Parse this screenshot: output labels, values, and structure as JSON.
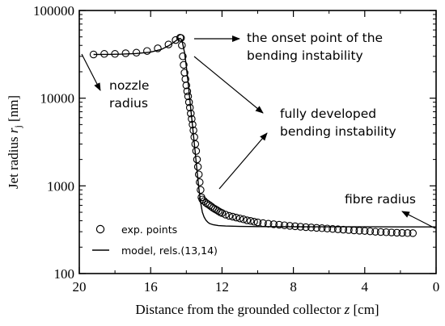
{
  "chart_data": {
    "type": "scatter",
    "xlabel": "Distance from the grounded collector z [cm]",
    "ylabel": "Jet radius r_j [nm]",
    "xlim": [
      20,
      0
    ],
    "ylim": [
      100,
      100000
    ],
    "y_scale": "log",
    "x_reversed": true,
    "grid": false,
    "x_ticks": [
      20,
      16,
      12,
      8,
      4,
      0
    ],
    "y_ticks": [
      100,
      1000,
      10000,
      100000
    ],
    "x_tick_labels": [
      "20",
      "16",
      "12",
      "8",
      "4",
      "0"
    ],
    "y_tick_labels": [
      "100",
      "1000",
      "10000",
      "100000"
    ],
    "legend_position": "bottom-left",
    "series": [
      {
        "name": "exp. points",
        "marker": "open-circle",
        "x": [
          19.2,
          18.6,
          18.0,
          17.4,
          16.8,
          16.2,
          15.6,
          15.0,
          14.6,
          14.35,
          14.3,
          14.25,
          14.2,
          14.15,
          14.1,
          14.05,
          14.0,
          13.95,
          13.9,
          13.85,
          13.8,
          13.75,
          13.7,
          13.65,
          13.6,
          13.55,
          13.5,
          13.45,
          13.4,
          13.35,
          13.3,
          13.25,
          13.2,
          13.15,
          13.1,
          13.0,
          12.9,
          12.8,
          12.7,
          12.6,
          12.5,
          12.4,
          12.3,
          12.2,
          12.1,
          12.0,
          11.8,
          11.6,
          11.4,
          11.2,
          11.0,
          10.8,
          10.6,
          10.4,
          10.2,
          10.0,
          9.7,
          9.4,
          9.1,
          8.8,
          8.5,
          8.2,
          7.9,
          7.6,
          7.3,
          7.0,
          6.7,
          6.4,
          6.1,
          5.8,
          5.5,
          5.2,
          4.9,
          4.6,
          4.3,
          4.0,
          3.7,
          3.4,
          3.1,
          2.8,
          2.5,
          2.2,
          1.9,
          1.6,
          1.3
        ],
        "y": [
          31500,
          32000,
          32000,
          32500,
          33000,
          34500,
          37000,
          41000,
          46000,
          49000,
          48500,
          40000,
          30000,
          24000,
          19500,
          16500,
          14000,
          12000,
          10500,
          9000,
          7800,
          6700,
          5800,
          5000,
          4300,
          3600,
          3000,
          2500,
          2000,
          1650,
          1350,
          1100,
          900,
          740,
          700,
          670,
          640,
          620,
          600,
          580,
          560,
          545,
          530,
          515,
          500,
          490,
          470,
          455,
          445,
          435,
          425,
          415,
          405,
          398,
          390,
          383,
          376,
          370,
          365,
          360,
          355,
          350,
          346,
          342,
          338,
          335,
          332,
          329,
          326,
          323,
          320,
          317,
          314,
          311,
          308,
          306,
          303,
          300,
          298,
          296,
          294,
          292,
          291,
          290,
          289
        ]
      },
      {
        "name": "model, rels.(13,14)",
        "line": "solid",
        "x": [
          19.2,
          18.4,
          17.6,
          16.8,
          16.0,
          15.4,
          15.0,
          14.7,
          14.5,
          14.35,
          14.25,
          14.1,
          14.0,
          13.9,
          13.8,
          13.7,
          13.6,
          13.5,
          13.4,
          13.3,
          13.2,
          13.1,
          13.0,
          12.9,
          12.8,
          12.7,
          12.5,
          12.2,
          11.8,
          11.0,
          10.0,
          8.0,
          6.0,
          4.0,
          2.0,
          0.0
        ],
        "y": [
          31500,
          31600,
          31800,
          32300,
          33500,
          36000,
          39500,
          43500,
          46500,
          48000,
          46000,
          33000,
          23000,
          15000,
          9500,
          6000,
          3800,
          2400,
          1500,
          950,
          650,
          500,
          440,
          405,
          385,
          372,
          360,
          352,
          348,
          345,
          343,
          342,
          341,
          341,
          340,
          340
        ]
      }
    ],
    "annotations": [
      {
        "lines": [
          "nozzle",
          "radius"
        ]
      },
      {
        "lines": [
          "the onset point of the",
          "bending instability"
        ]
      },
      {
        "lines": [
          "fully developed",
          "bending instability"
        ]
      },
      {
        "lines": [
          "fibre radius"
        ]
      }
    ]
  },
  "labels": {
    "xlabel_pre": "Distance from the grounded collector ",
    "xlabel_var": "z",
    "xlabel_post": " [cm]",
    "ylabel_pre": "Jet radius ",
    "ylabel_var": "r",
    "ylabel_sub": "j",
    "ylabel_post": " [nm]"
  }
}
